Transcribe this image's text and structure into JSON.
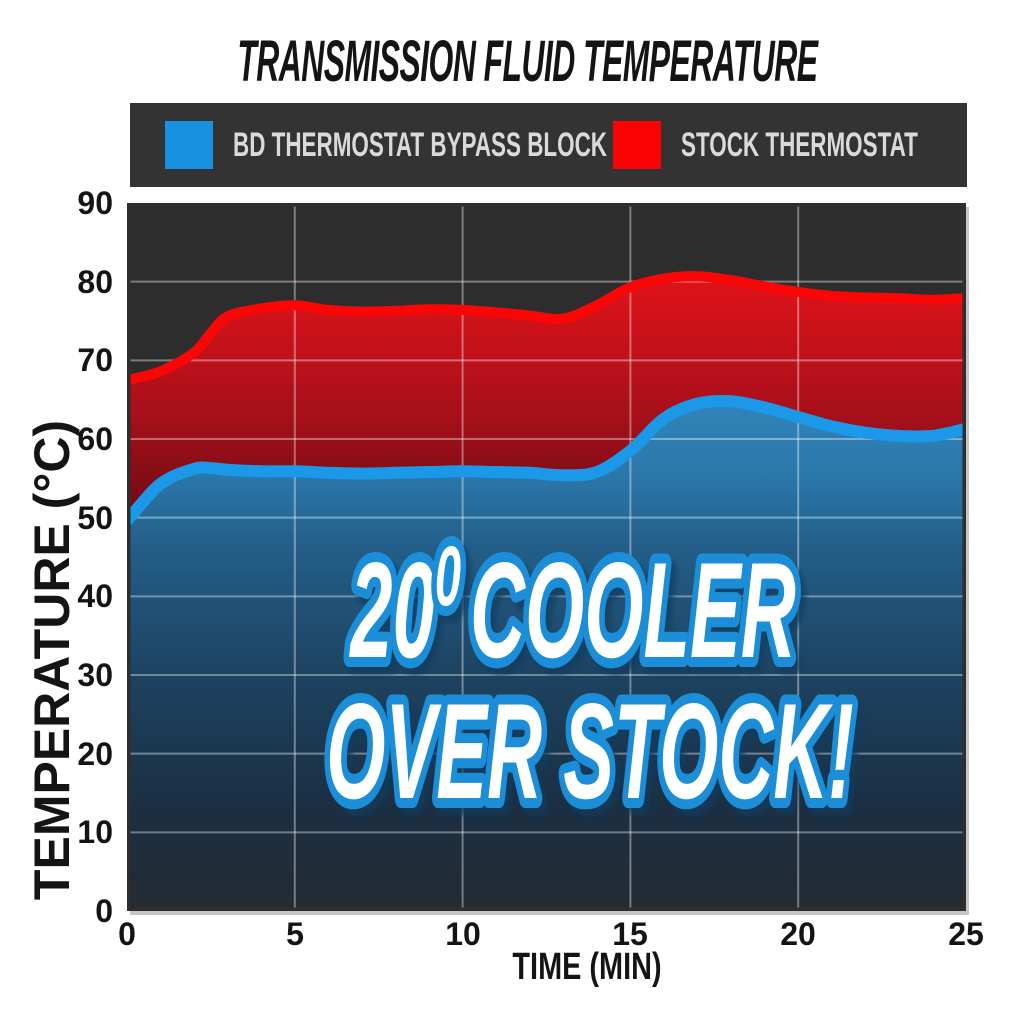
{
  "title": "TRANSMISSION FLUID TEMPERATURE",
  "legend": {
    "items": [
      {
        "label": "BD THERMOSTAT BYPASS BLOCK",
        "color": "#1791e0"
      },
      {
        "label": "STOCK THERMOSTAT",
        "color": "#fb0305"
      }
    ]
  },
  "style": {
    "background": "#ffffff",
    "text_color": "#141414",
    "legend_bg": "#333333",
    "legend_text": "#d9dadb",
    "plot_bg": "#2d2d2d",
    "grid_color": "rgba(255,255,255,0.38)",
    "annotation_fill": "#ffffff",
    "annotation_outline": "#1a8ed8",
    "annotation_shadow": "#0c3a5f",
    "red_fill_stops": [
      "#e31219",
      "#a5101a",
      "#55090f"
    ],
    "blue_fill_stops": [
      "#3186bc",
      "#2b77aa",
      "#235e88",
      "#1d4260",
      "#1b2f43",
      "#252b33"
    ]
  },
  "chart_data": {
    "type": "area",
    "title": "TRANSMISSION FLUID TEMPERATURE",
    "xlabel": "TIME (MIN)",
    "ylabel": "TEMPERATURE (°C)",
    "xlim": [
      0,
      25
    ],
    "ylim": [
      0,
      90
    ],
    "x_ticks": [
      0,
      5,
      10,
      15,
      20,
      25
    ],
    "y_ticks": [
      0,
      10,
      20,
      30,
      40,
      50,
      60,
      70,
      80,
      90
    ],
    "grid": true,
    "legend_position": "top",
    "x": [
      0,
      1,
      2,
      2.5,
      3,
      4,
      5,
      6,
      7,
      8,
      9,
      10,
      11,
      12,
      13,
      14,
      15,
      16,
      17,
      18,
      19,
      20,
      21,
      22,
      23,
      24,
      25
    ],
    "series": [
      {
        "name": "BD THERMOSTAT BYPASS BLOCK",
        "color": "#1b98e8",
        "values": [
          49.6,
          54.3,
          56.2,
          56.3,
          56.1,
          55.9,
          55.9,
          55.7,
          55.6,
          55.7,
          55.8,
          55.9,
          55.8,
          55.7,
          55.4,
          55.8,
          58.5,
          62.6,
          64.5,
          64.8,
          64.0,
          62.8,
          61.6,
          60.8,
          60.4,
          60.4,
          61.3
        ]
      },
      {
        "name": "STOCK THERMOSTAT",
        "color": "#f90707",
        "values": [
          67.5,
          68.6,
          71.0,
          73.5,
          75.6,
          76.6,
          77.0,
          76.4,
          76.2,
          76.3,
          76.5,
          76.4,
          76.1,
          75.7,
          75.3,
          77.0,
          79.3,
          80.4,
          80.7,
          80.2,
          79.4,
          78.7,
          78.2,
          78.0,
          77.9,
          77.7,
          77.9
        ]
      }
    ],
    "annotation": {
      "prefix": "20",
      "superscript": "0",
      "suffix": "COOLER",
      "line2": "OVER STOCK!",
      "full_text": "20⁰ COOLER OVER STOCK!"
    }
  }
}
